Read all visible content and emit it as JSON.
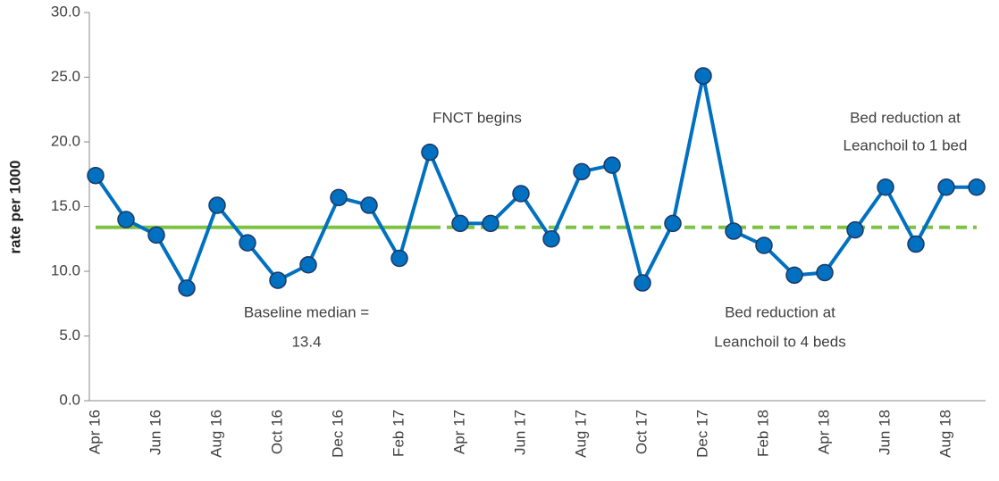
{
  "chart_data": {
    "type": "line",
    "y_label": "rate per 1000",
    "categories": [
      "Apr 16",
      null,
      "Jun 16",
      null,
      "Aug 16",
      null,
      "Oct 16",
      null,
      "Dec 16",
      null,
      "Feb 17",
      null,
      "Apr 17",
      null,
      "Jun 17",
      null,
      "Aug 17",
      null,
      "Oct 17",
      null,
      "Dec 17",
      null,
      "Feb 18",
      null,
      "Apr 18",
      null,
      "Jun 18",
      null,
      "Aug 18",
      null
    ],
    "series": [
      {
        "color": "#0070c0",
        "values": [
          17.4,
          14.0,
          12.8,
          8.7,
          15.1,
          12.2,
          9.3,
          10.5,
          15.7,
          15.1,
          11.0,
          19.2,
          13.7,
          13.7,
          16.0,
          12.5,
          17.7,
          18.2,
          9.1,
          13.7,
          25.1,
          13.1,
          12.0,
          9.7,
          9.9,
          13.2,
          16.5,
          12.1,
          16.5,
          16.5
        ]
      }
    ],
    "median_lines": [
      {
        "color": "#7dc242",
        "dashed": false,
        "values": [
          13.4,
          13.4,
          13.4,
          13.4,
          13.4,
          13.4,
          13.4,
          13.4,
          13.4,
          13.4,
          13.4,
          13.4,
          null,
          null,
          null,
          null,
          null,
          null,
          null,
          null,
          null,
          null,
          null,
          null,
          null,
          null,
          null,
          null,
          null,
          null
        ]
      },
      {
        "color": "#7dc242",
        "dashed": true,
        "values": [
          null,
          null,
          null,
          null,
          null,
          null,
          null,
          null,
          null,
          null,
          null,
          13.4,
          13.4,
          13.4,
          13.4,
          13.4,
          13.4,
          13.4,
          13.4,
          13.4,
          13.4,
          13.4,
          13.4,
          13.4,
          13.4,
          13.4,
          13.4,
          13.4,
          13.4,
          13.4
        ]
      }
    ],
    "annotations": [
      "Baseline median  =",
      "FNCT begins",
      "Bed reduction at",
      "Leanchoil to 4 beds",
      "Bed reduction at",
      "Leanchoil to 1 bed"
    ],
    "ylim": [
      0,
      30
    ],
    "yticks": [
      {
        "value": 0,
        "label": "0.0"
      },
      {
        "value": 5,
        "label": "5.0"
      },
      {
        "value": 10,
        "label": "10.0"
      },
      {
        "value": 15,
        "label": "15.0"
      },
      {
        "value": 20,
        "label": "20.0"
      },
      {
        "value": 25,
        "label": "25.0"
      },
      {
        "value": 30,
        "label": "30.0"
      }
    ]
  }
}
